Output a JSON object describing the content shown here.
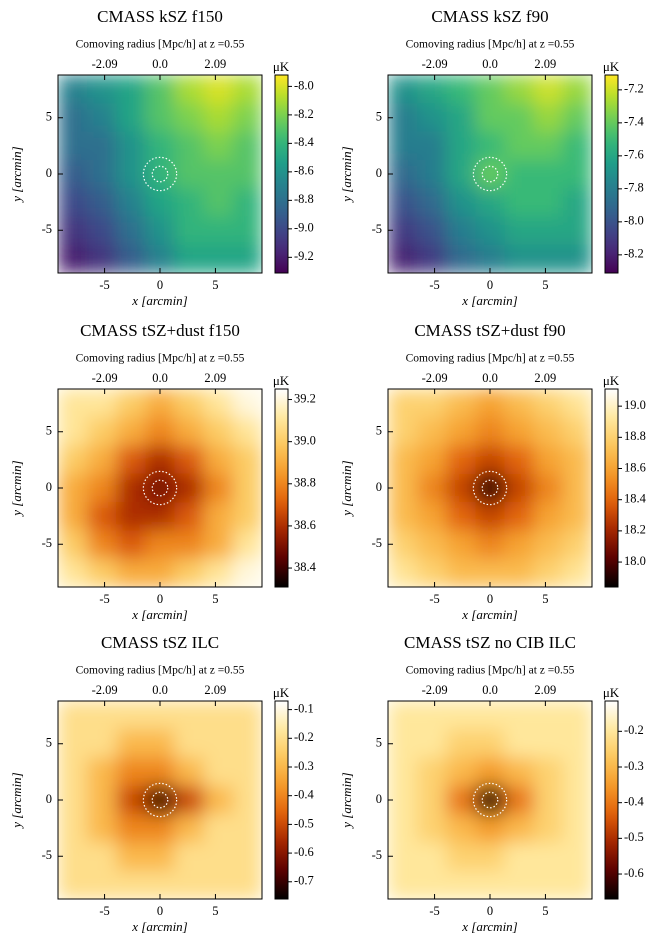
{
  "chart_data": [
    {
      "type": "heatmap",
      "title": "CMASS kSZ f150",
      "top_xlabel": "Comoving radius [Mpc/h] at z =0.55",
      "xlabel": "x [arcmin]",
      "ylabel": "y [arcmin]",
      "colorbar_label": "μK",
      "colormap": "viridis",
      "xlim": [
        -9.2,
        9.2
      ],
      "ylim": [
        -8.8,
        8.8
      ],
      "xticks": [
        -5,
        0,
        5
      ],
      "yticks": [
        -5,
        0,
        5
      ],
      "x2lim": [
        -3.85,
        3.85
      ],
      "x2ticks": [
        -2.09,
        {
          "value": 0,
          "label": "0.0"
        },
        2.09
      ],
      "clim": [
        -9.31,
        -7.92
      ],
      "cticks": [
        {
          "value": -8.0,
          "label": "-8.0"
        },
        -8.2,
        -8.4,
        -8.6,
        -8.8,
        {
          "value": -9.0,
          "label": "-9.0"
        },
        -9.2
      ],
      "circles": [
        0.7,
        1.5
      ],
      "values": [
        [
          -8.7,
          -8.6,
          -8.5,
          -8.3,
          -8.1,
          -8.0,
          -8.1
        ],
        [
          -8.8,
          -8.7,
          -8.5,
          -8.3,
          -8.2,
          -8.1,
          -8.2
        ],
        [
          -8.8,
          -8.8,
          -8.6,
          -8.4,
          -8.3,
          -8.2,
          -8.3
        ],
        [
          -8.9,
          -8.8,
          -8.6,
          -8.4,
          -8.3,
          -8.3,
          -8.3
        ],
        [
          -9.0,
          -8.9,
          -8.7,
          -8.5,
          -8.4,
          -8.3,
          -8.4
        ],
        [
          -9.1,
          -9.0,
          -8.8,
          -8.6,
          -8.4,
          -8.4,
          -8.4
        ],
        [
          -9.2,
          -9.1,
          -8.9,
          -8.7,
          -8.5,
          -8.5,
          -8.5
        ]
      ]
    },
    {
      "type": "heatmap",
      "title": "CMASS kSZ f90",
      "top_xlabel": "Comoving radius [Mpc/h] at z =0.55",
      "xlabel": "x [arcmin]",
      "ylabel": "y [arcmin]",
      "colorbar_label": "μK",
      "colormap": "viridis",
      "xlim": [
        -9.2,
        9.2
      ],
      "ylim": [
        -8.8,
        8.8
      ],
      "xticks": [
        -5,
        0,
        5
      ],
      "yticks": [
        -5,
        0,
        5
      ],
      "x2lim": [
        -3.85,
        3.85
      ],
      "x2ticks": [
        -2.09,
        {
          "value": 0,
          "label": "0.0"
        },
        2.09
      ],
      "clim": [
        -8.31,
        -7.11
      ],
      "cticks": [
        -7.2,
        -7.4,
        -7.6,
        -7.8,
        {
          "value": -8.0,
          "label": "-8.0"
        },
        -8.2
      ],
      "circles": [
        0.7,
        1.5
      ],
      "values": [
        [
          -7.7,
          -7.6,
          -7.5,
          -7.4,
          -7.3,
          -7.2,
          -7.3
        ],
        [
          -7.8,
          -7.7,
          -7.6,
          -7.4,
          -7.4,
          -7.3,
          -7.4
        ],
        [
          -7.8,
          -7.8,
          -7.6,
          -7.5,
          -7.4,
          -7.4,
          -7.5
        ],
        [
          -7.9,
          -7.8,
          -7.6,
          -7.4,
          -7.5,
          -7.5,
          -7.5
        ],
        [
          -8.0,
          -7.9,
          -7.7,
          -7.6,
          -7.5,
          -7.5,
          -7.6
        ],
        [
          -8.1,
          -8.0,
          -7.8,
          -7.7,
          -7.6,
          -7.6,
          -7.6
        ],
        [
          -8.2,
          -8.1,
          -7.9,
          -7.8,
          -7.7,
          -7.7,
          -7.7
        ]
      ]
    },
    {
      "type": "heatmap",
      "title": "CMASS tSZ+dust f150",
      "top_xlabel": "Comoving radius [Mpc/h] at z =0.55",
      "xlabel": "x [arcmin]",
      "ylabel": "y [arcmin]",
      "colorbar_label": "μK",
      "colormap": "afmhot",
      "xlim": [
        -9.2,
        9.2
      ],
      "ylim": [
        -8.8,
        8.8
      ],
      "xticks": [
        -5,
        0,
        5
      ],
      "yticks": [
        -5,
        0,
        5
      ],
      "x2lim": [
        -3.85,
        3.85
      ],
      "x2ticks": [
        -2.09,
        {
          "value": 0,
          "label": "0.0"
        },
        2.09
      ],
      "clim": [
        38.31,
        39.25
      ],
      "cticks": [
        38.4,
        38.6,
        38.8,
        {
          "value": 39.0,
          "label": "39.0"
        },
        39.2
      ],
      "circles": [
        0.7,
        1.5
      ],
      "values": [
        [
          39.1,
          39.1,
          39.0,
          38.9,
          39.0,
          39.1,
          39.2
        ],
        [
          39.1,
          39.0,
          38.9,
          38.8,
          38.9,
          39.0,
          39.1
        ],
        [
          39.0,
          38.9,
          38.7,
          38.6,
          38.7,
          38.9,
          39.0
        ],
        [
          38.9,
          38.8,
          38.6,
          38.5,
          38.6,
          38.8,
          39.0
        ],
        [
          38.9,
          38.7,
          38.6,
          38.6,
          38.7,
          38.9,
          39.0
        ],
        [
          39.0,
          38.8,
          38.7,
          38.8,
          38.8,
          38.9,
          39.1
        ],
        [
          39.1,
          39.0,
          38.9,
          38.9,
          39.0,
          39.1,
          39.2
        ]
      ]
    },
    {
      "type": "heatmap",
      "title": "CMASS tSZ+dust f90",
      "top_xlabel": "Comoving radius [Mpc/h] at z =0.55",
      "xlabel": "x [arcmin]",
      "ylabel": "y [arcmin]",
      "colorbar_label": "μK",
      "colormap": "afmhot",
      "xlim": [
        -9.2,
        9.2
      ],
      "ylim": [
        -8.8,
        8.8
      ],
      "xticks": [
        -5,
        0,
        5
      ],
      "yticks": [
        -5,
        0,
        5
      ],
      "x2lim": [
        -3.85,
        3.85
      ],
      "x2ticks": [
        -2.09,
        {
          "value": 0,
          "label": "0.0"
        },
        2.09
      ],
      "clim": [
        17.84,
        19.11
      ],
      "cticks": [
        {
          "value": 18.0,
          "label": "18.0"
        },
        18.2,
        18.4,
        18.6,
        18.8,
        {
          "value": 19.0,
          "label": "19.0"
        }
      ],
      "circles": [
        0.7,
        1.5
      ],
      "values": [
        [
          18.8,
          18.8,
          18.7,
          18.6,
          18.7,
          18.8,
          18.9
        ],
        [
          18.8,
          18.7,
          18.6,
          18.5,
          18.6,
          18.7,
          18.8
        ],
        [
          18.7,
          18.6,
          18.4,
          18.3,
          18.4,
          18.6,
          18.7
        ],
        [
          18.7,
          18.5,
          18.3,
          17.9,
          18.3,
          18.5,
          18.7
        ],
        [
          18.7,
          18.6,
          18.4,
          18.3,
          18.4,
          18.6,
          18.7
        ],
        [
          18.8,
          18.7,
          18.6,
          18.5,
          18.6,
          18.7,
          18.8
        ],
        [
          18.9,
          18.8,
          18.7,
          18.7,
          18.7,
          18.8,
          18.9
        ]
      ]
    },
    {
      "type": "heatmap",
      "title": "CMASS tSZ ILC",
      "top_xlabel": "Comoving radius [Mpc/h] at z =0.55",
      "xlabel": "x [arcmin]",
      "ylabel": "y [arcmin]",
      "colorbar_label": "μK",
      "colormap": "afmhot",
      "xlim": [
        -9.2,
        9.2
      ],
      "ylim": [
        -8.8,
        8.8
      ],
      "xticks": [
        -5,
        0,
        5
      ],
      "yticks": [
        -5,
        0,
        5
      ],
      "x2lim": [
        -3.85,
        3.85
      ],
      "x2ticks": [
        -2.09,
        {
          "value": 0,
          "label": "0.0"
        },
        2.09
      ],
      "clim": [
        -0.76,
        -0.07
      ],
      "cticks": [
        -0.1,
        -0.2,
        -0.3,
        -0.4,
        -0.5,
        -0.6,
        -0.7
      ],
      "circles": [
        0.7,
        1.5
      ],
      "values": [
        [
          -0.2,
          -0.2,
          -0.2,
          -0.2,
          -0.2,
          -0.2,
          -0.2
        ],
        [
          -0.2,
          -0.2,
          -0.3,
          -0.3,
          -0.2,
          -0.2,
          -0.2
        ],
        [
          -0.2,
          -0.3,
          -0.4,
          -0.4,
          -0.3,
          -0.2,
          -0.2
        ],
        [
          -0.2,
          -0.3,
          -0.5,
          -0.7,
          -0.5,
          -0.3,
          -0.2
        ],
        [
          -0.2,
          -0.3,
          -0.4,
          -0.4,
          -0.3,
          -0.2,
          -0.2
        ],
        [
          -0.2,
          -0.2,
          -0.3,
          -0.3,
          -0.2,
          -0.2,
          -0.2
        ],
        [
          -0.2,
          -0.2,
          -0.2,
          -0.2,
          -0.2,
          -0.2,
          -0.2
        ]
      ]
    },
    {
      "type": "heatmap",
      "title": "CMASS tSZ no CIB ILC",
      "top_xlabel": "Comoving radius [Mpc/h] at z =0.55",
      "xlabel": "x [arcmin]",
      "ylabel": "y [arcmin]",
      "colorbar_label": "μK",
      "colormap": "afmhot",
      "xlim": [
        -9.2,
        9.2
      ],
      "ylim": [
        -8.8,
        8.8
      ],
      "xticks": [
        -5,
        0,
        5
      ],
      "yticks": [
        -5,
        0,
        5
      ],
      "x2lim": [
        -3.85,
        3.85
      ],
      "x2ticks": [
        -2.09,
        {
          "value": 0,
          "label": "0.0"
        },
        2.09
      ],
      "clim": [
        -0.67,
        -0.115
      ],
      "cticks": [
        -0.2,
        -0.3,
        -0.4,
        -0.5,
        -0.6
      ],
      "circles": [
        0.7,
        1.5
      ],
      "values": [
        [
          -0.2,
          -0.2,
          -0.2,
          -0.2,
          -0.2,
          -0.2,
          -0.2
        ],
        [
          -0.2,
          -0.2,
          -0.25,
          -0.25,
          -0.2,
          -0.2,
          -0.2
        ],
        [
          -0.2,
          -0.25,
          -0.3,
          -0.35,
          -0.3,
          -0.25,
          -0.2
        ],
        [
          -0.2,
          -0.25,
          -0.4,
          -0.65,
          -0.4,
          -0.25,
          -0.2
        ],
        [
          -0.2,
          -0.25,
          -0.3,
          -0.35,
          -0.3,
          -0.25,
          -0.2
        ],
        [
          -0.2,
          -0.2,
          -0.25,
          -0.25,
          -0.2,
          -0.2,
          -0.2
        ],
        [
          -0.2,
          -0.2,
          -0.2,
          -0.2,
          -0.2,
          -0.2,
          -0.2
        ]
      ]
    }
  ]
}
